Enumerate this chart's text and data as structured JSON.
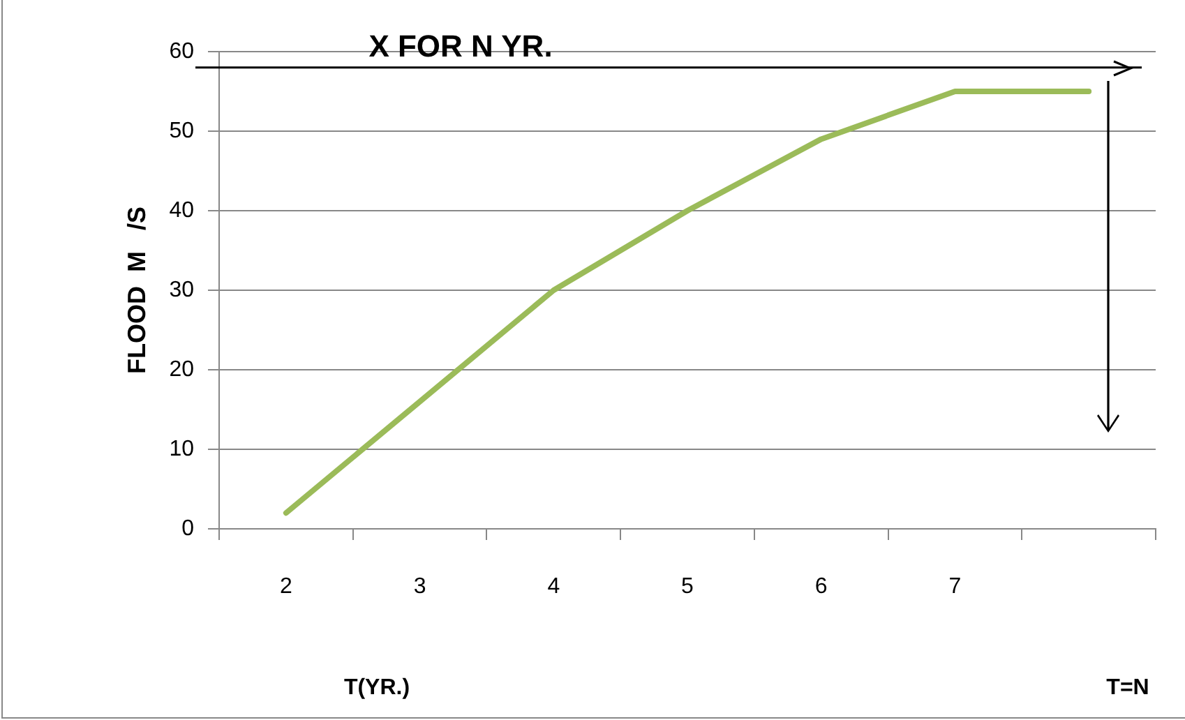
{
  "chart_data": {
    "type": "line",
    "ylabel": "FLOOD  M   /S",
    "xlabel": "T(YR.)",
    "annotations": [
      "T=N"
    ],
    "ref_lines": [
      {
        "axis": "y",
        "value": 58,
        "label": "X FOR N YR.",
        "color": "#000000"
      }
    ],
    "categories": [
      "2",
      "3",
      "4",
      "5",
      "6",
      "7",
      null
    ],
    "series": [
      {
        "color": "#9bbb59",
        "values": [
          2,
          16,
          30,
          40,
          49,
          55,
          55
        ]
      }
    ],
    "ylim": [
      0,
      60
    ],
    "yticks": [
      0,
      10,
      20,
      30,
      40,
      50,
      60
    ],
    "grid": "y",
    "legend": false,
    "marker": "none",
    "line_style": "solid"
  }
}
